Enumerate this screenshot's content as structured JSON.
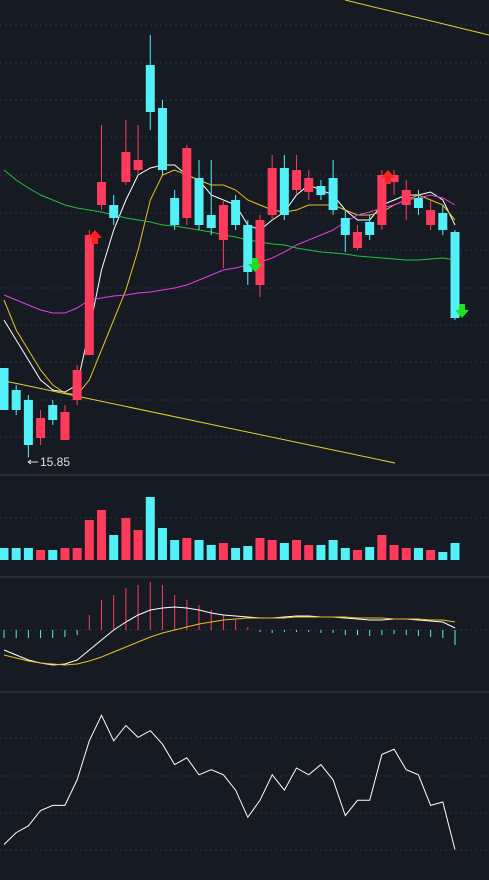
{
  "chart_data": {
    "type": "candlestick",
    "annotation": 15.85,
    "price": {
      "ylim": [
        15.5,
        25.0
      ],
      "open": [
        17.64,
        17.2,
        17.0,
        16.24,
        16.9,
        16.2,
        17.0,
        17.9,
        20.9,
        20.9,
        21.36,
        21.6,
        23.7,
        22.84,
        21.04,
        20.64,
        21.44,
        20.7,
        20.2,
        21.0,
        20.5,
        19.3,
        20.7,
        21.64,
        21.2,
        21.16,
        21.28,
        21.44,
        20.64,
        20.04,
        20.56,
        20.5,
        21.36,
        20.9,
        21.04,
        20.5,
        20.74,
        20.36
      ],
      "close": [
        16.8,
        16.8,
        16.1,
        16.64,
        16.6,
        16.76,
        17.6,
        20.3,
        21.36,
        20.64,
        21.96,
        21.8,
        22.76,
        21.6,
        20.5,
        22.04,
        20.5,
        20.44,
        20.9,
        20.5,
        19.56,
        20.6,
        21.64,
        20.7,
        21.6,
        21.44,
        21.1,
        20.8,
        20.3,
        20.36,
        20.3,
        21.5,
        21.5,
        21.2,
        20.84,
        20.8,
        20.4,
        18.64
      ],
      "high": [
        17.64,
        17.3,
        17.1,
        16.8,
        17.0,
        16.9,
        17.7,
        20.4,
        22.5,
        21.1,
        22.6,
        22.5,
        24.3,
        23.0,
        21.2,
        22.1,
        21.8,
        21.8,
        21.0,
        21.1,
        20.6,
        20.7,
        21.9,
        21.9,
        21.9,
        21.6,
        21.4,
        21.8,
        20.8,
        20.5,
        20.7,
        21.6,
        21.6,
        21.4,
        21.2,
        21.0,
        20.9,
        20.4
      ],
      "low": [
        16.8,
        16.7,
        15.85,
        16.1,
        16.5,
        16.2,
        16.9,
        17.9,
        20.8,
        20.5,
        21.3,
        21.5,
        22.4,
        21.5,
        20.4,
        20.5,
        20.4,
        20.3,
        19.64,
        20.4,
        19.3,
        19.06,
        20.6,
        20.6,
        21.1,
        21.0,
        21.0,
        20.7,
        19.96,
        20.0,
        20.2,
        20.4,
        21.1,
        20.6,
        20.7,
        20.4,
        20.3,
        18.6
      ],
      "series": [
        {
          "color": "#ffffff",
          "values": [
            18.6,
            18.2,
            17.8,
            17.4,
            17.2,
            17.16,
            17.3,
            18.4,
            19.6,
            20.4,
            21.0,
            21.5,
            21.64,
            21.7,
            21.7,
            21.5,
            21.4,
            21.1,
            21.0,
            20.9,
            20.5,
            20.4,
            20.6,
            20.76,
            21.1,
            21.3,
            21.2,
            21.1,
            20.8,
            20.6,
            20.6,
            20.9,
            21.0,
            21.1,
            21.1,
            21.16,
            21.0,
            20.5
          ]
        },
        {
          "color": "#e8c020",
          "values": [
            19.0,
            18.4,
            18.0,
            17.6,
            17.3,
            17.14,
            17.1,
            17.4,
            18.0,
            18.6,
            19.2,
            20.0,
            21.0,
            21.5,
            21.6,
            21.5,
            21.4,
            21.3,
            21.3,
            21.2,
            21.0,
            20.9,
            20.8,
            20.76,
            20.8,
            20.9,
            20.9,
            20.9,
            20.8,
            20.7,
            20.7,
            20.76,
            20.9,
            21.0,
            21.1,
            21.0,
            20.9,
            20.6
          ]
        },
        {
          "color": "#e040e0",
          "values": [
            19.1,
            19.0,
            18.9,
            18.8,
            18.74,
            18.74,
            18.84,
            19.0,
            19.04,
            19.08,
            19.1,
            19.14,
            19.16,
            19.2,
            19.24,
            19.3,
            19.4,
            19.5,
            19.6,
            19.64,
            19.7,
            19.76,
            19.84,
            19.96,
            20.1,
            20.2,
            20.3,
            20.4,
            20.56,
            20.7,
            20.76,
            20.84,
            20.9,
            21.0,
            21.04,
            21.1,
            21.04,
            20.9
          ]
        },
        {
          "color": "#20c040",
          "values": [
            21.6,
            21.4,
            21.24,
            21.1,
            21.0,
            20.9,
            20.84,
            20.8,
            20.76,
            20.7,
            20.64,
            20.6,
            20.56,
            20.5,
            20.48,
            20.44,
            20.4,
            20.36,
            20.3,
            20.26,
            20.2,
            20.16,
            20.12,
            20.1,
            20.04,
            20.0,
            19.96,
            19.94,
            19.92,
            19.88,
            19.86,
            19.84,
            19.82,
            19.8,
            19.8,
            19.82,
            19.84,
            19.8
          ]
        }
      ]
    },
    "volume": {
      "ylim": [
        0,
        80
      ],
      "values": [
        12,
        12,
        12,
        10,
        10,
        12,
        12,
        40,
        50,
        25,
        42,
        30,
        63,
        32,
        20,
        22,
        20,
        15,
        17,
        12,
        14,
        22,
        20,
        17,
        20,
        15,
        15,
        20,
        12,
        10,
        13,
        25,
        15,
        12,
        12,
        10,
        8,
        17
      ]
    },
    "macd": {
      "ylim": [
        -60,
        55
      ],
      "hist": [
        -8,
        -8,
        -8,
        -8,
        -8,
        -7,
        -5,
        15,
        30,
        35,
        42,
        45,
        48,
        45,
        35,
        30,
        25,
        20,
        15,
        10,
        3,
        -2,
        -3,
        -2,
        -2,
        -2,
        -3,
        -3,
        -5,
        -5,
        -6,
        -5,
        -4,
        -5,
        -6,
        -7,
        -8,
        -15
      ],
      "dif": [
        -20,
        -25,
        -30,
        -33,
        -35,
        -34,
        -30,
        -20,
        -10,
        0,
        8,
        15,
        20,
        22,
        23,
        22,
        20,
        17,
        15,
        14,
        13,
        12,
        12,
        13,
        14,
        14,
        13,
        13,
        12,
        11,
        10,
        10,
        11,
        11,
        10,
        9,
        8,
        2
      ],
      "dea": [
        -25,
        -28,
        -31,
        -33,
        -34,
        -35,
        -34,
        -31,
        -27,
        -22,
        -17,
        -12,
        -7,
        -3,
        0,
        3,
        6,
        8,
        10,
        11,
        12,
        12,
        12,
        12,
        13,
        13,
        13,
        13,
        13,
        12,
        12,
        12,
        11,
        11,
        11,
        10,
        10,
        8
      ]
    },
    "oscillator": {
      "ylim": [
        0,
        100
      ],
      "values": [
        15,
        22,
        26,
        35,
        38,
        38,
        53,
        76,
        91,
        76,
        85,
        78,
        82,
        74,
        62,
        66,
        56,
        59,
        56,
        47,
        31,
        41,
        56,
        47,
        60,
        56,
        62,
        53,
        32,
        41,
        41,
        68,
        71,
        59,
        56,
        38,
        40,
        12
      ]
    }
  }
}
